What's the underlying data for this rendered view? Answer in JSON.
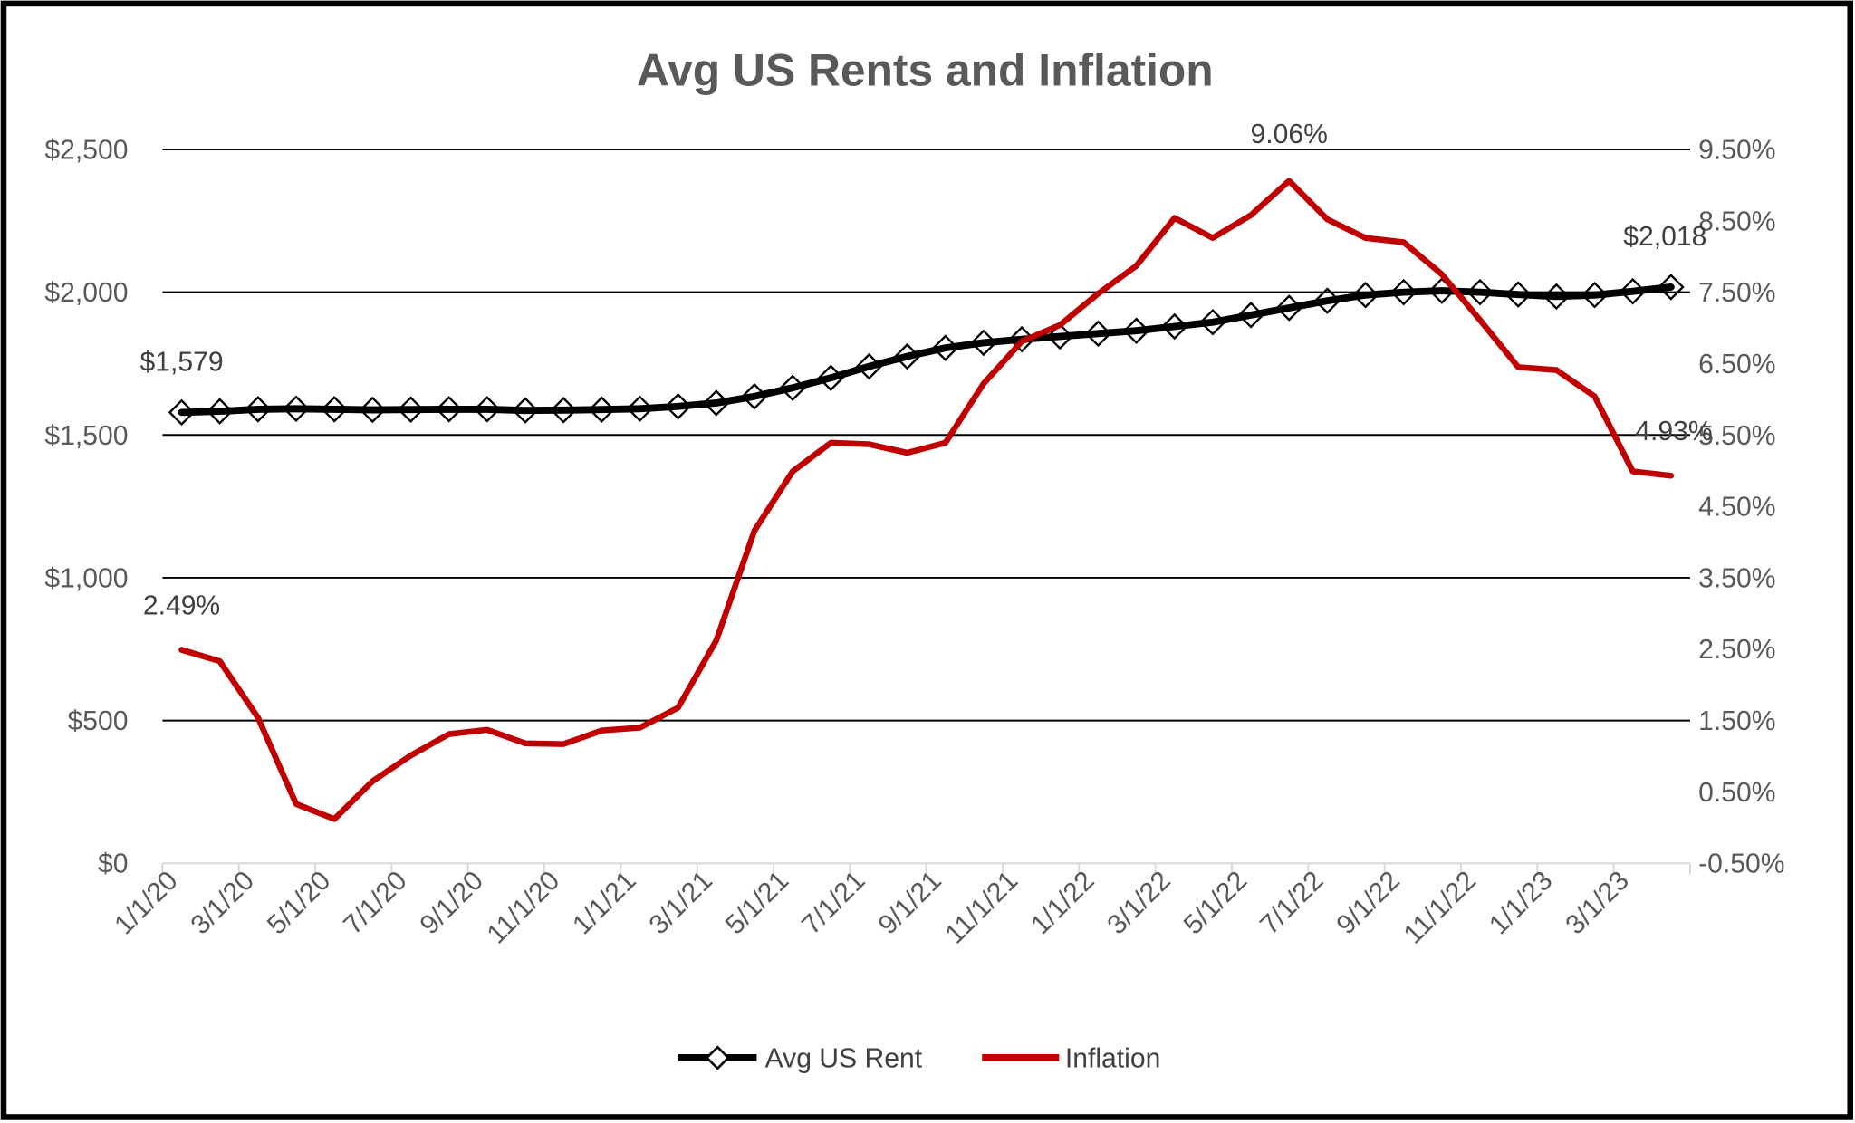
{
  "chart_data": {
    "type": "line",
    "title": "Avg US Rents and Inflation",
    "x": [
      "1/1/20",
      "2/1/20",
      "3/1/20",
      "4/1/20",
      "5/1/20",
      "6/1/20",
      "7/1/20",
      "8/1/20",
      "9/1/20",
      "10/1/20",
      "11/1/20",
      "12/1/20",
      "1/1/21",
      "2/1/21",
      "3/1/21",
      "4/1/21",
      "5/1/21",
      "6/1/21",
      "7/1/21",
      "8/1/21",
      "9/1/21",
      "10/1/21",
      "11/1/21",
      "12/1/21",
      "1/1/22",
      "2/1/22",
      "3/1/22",
      "4/1/22",
      "5/1/22",
      "6/1/22",
      "7/1/22",
      "8/1/22",
      "9/1/22",
      "10/1/22",
      "11/1/22",
      "12/1/22",
      "1/1/23",
      "2/1/23",
      "3/1/23",
      "4/1/23"
    ],
    "x_tick_labels": [
      "1/1/20",
      "3/1/20",
      "5/1/20",
      "7/1/20",
      "9/1/20",
      "11/1/20",
      "1/1/21",
      "3/1/21",
      "5/1/21",
      "7/1/21",
      "9/1/21",
      "11/1/21",
      "1/1/22",
      "3/1/22",
      "5/1/22",
      "7/1/22",
      "9/1/22",
      "11/1/22",
      "1/1/23",
      "3/1/23"
    ],
    "y_left": {
      "range": [
        0,
        2500
      ],
      "tick_labels": [
        "$0",
        "$500",
        "$1,000",
        "$1,500",
        "$2,000",
        "$2,500"
      ]
    },
    "y_right": {
      "range": [
        -0.5,
        9.5
      ],
      "tick_labels": [
        "-0.50%",
        "0.50%",
        "1.50%",
        "2.50%",
        "3.50%",
        "4.50%",
        "5.50%",
        "6.50%",
        "7.50%",
        "8.50%",
        "9.50%"
      ]
    },
    "grid": true,
    "legend_position": "bottom",
    "series": [
      {
        "name": "Avg US Rent",
        "axis": "left",
        "color": "#000000",
        "marker": "diamond",
        "values": [
          1579,
          1583,
          1590,
          1592,
          1590,
          1588,
          1589,
          1590,
          1590,
          1586,
          1587,
          1589,
          1592,
          1600,
          1612,
          1635,
          1665,
          1700,
          1740,
          1775,
          1805,
          1823,
          1835,
          1845,
          1855,
          1865,
          1880,
          1895,
          1920,
          1945,
          1970,
          1990,
          2000,
          2005,
          2000,
          1992,
          1985,
          1990,
          2003,
          2018
        ],
        "data_labels": [
          {
            "index": 0,
            "text": "$1,579"
          },
          {
            "index": 39,
            "text": "$2,018"
          }
        ]
      },
      {
        "name": "Inflation",
        "axis": "right",
        "color": "#C00000",
        "values": [
          2.49,
          2.33,
          1.54,
          0.33,
          0.12,
          0.65,
          1.01,
          1.31,
          1.37,
          1.18,
          1.17,
          1.36,
          1.4,
          1.68,
          2.62,
          4.16,
          4.99,
          5.39,
          5.37,
          5.25,
          5.39,
          6.22,
          6.81,
          7.04,
          7.48,
          7.87,
          8.54,
          8.26,
          8.58,
          9.06,
          8.52,
          8.26,
          8.2,
          7.75,
          7.11,
          6.45,
          6.41,
          6.04,
          4.99,
          4.93
        ],
        "data_labels": [
          {
            "index": 0,
            "text": "2.49%"
          },
          {
            "index": 29,
            "text": "9.06%"
          },
          {
            "index": 39,
            "text": "4.93%"
          }
        ]
      }
    ]
  }
}
